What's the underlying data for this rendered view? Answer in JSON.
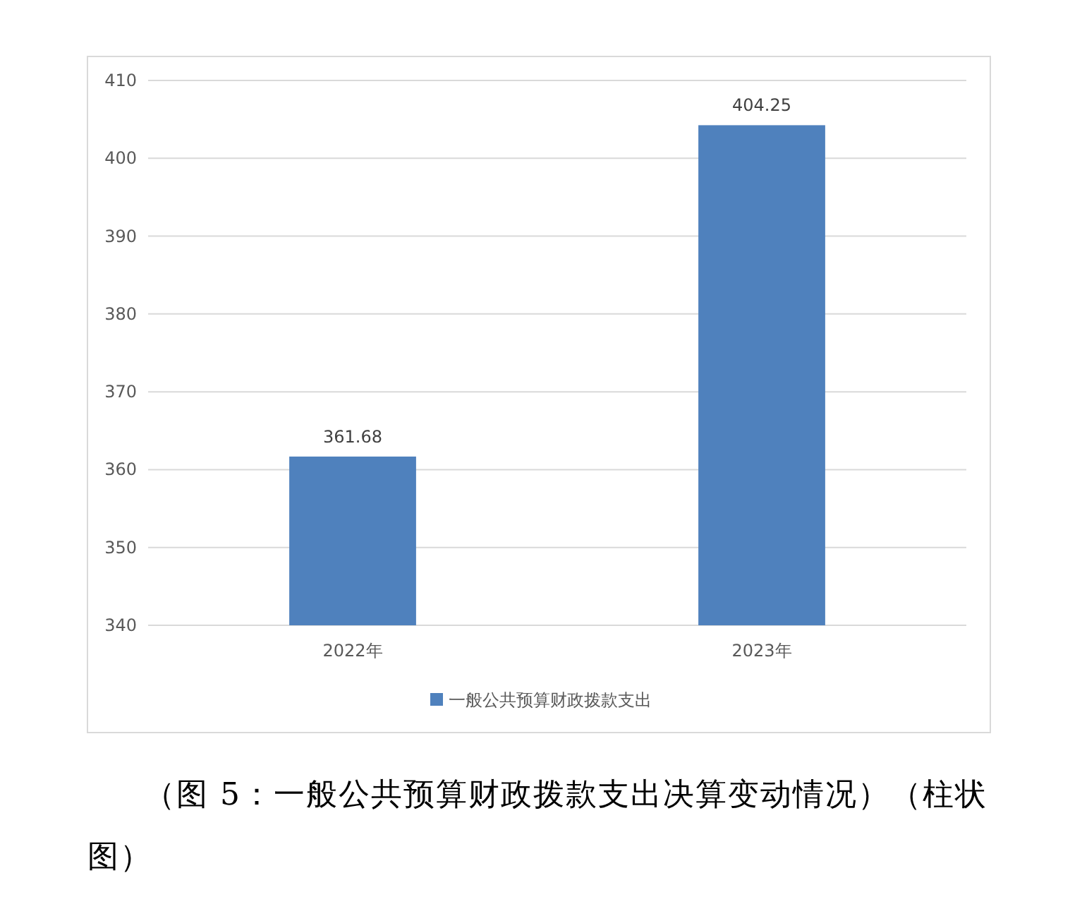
{
  "chart_data": {
    "type": "bar",
    "categories": [
      "2022年",
      "2023年"
    ],
    "series": [
      {
        "name": "一般公共预算财政拨款支出",
        "color": "#4f81bd",
        "values": [
          361.68,
          404.25
        ]
      }
    ],
    "ylim": [
      340,
      410
    ],
    "yticks": [
      340,
      350,
      360,
      370,
      380,
      390,
      400,
      410
    ],
    "grid": "y",
    "legend": "bottom",
    "data_labels": true,
    "annotations": [
      "（图 5：一般公共预算财政拨款支出决算变动情况）（柱状图）"
    ]
  }
}
